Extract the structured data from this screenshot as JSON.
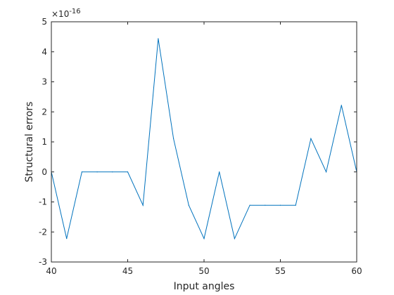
{
  "chart_data": {
    "type": "line",
    "title": "",
    "xlabel": "Input angles",
    "ylabel": "Structural errors",
    "xlim": [
      40,
      60
    ],
    "ylim": [
      -3,
      5
    ],
    "y_exponent_label": "×10",
    "y_exponent_power": "-16",
    "grid": false,
    "box": true,
    "line_color": "#0072BD",
    "axis_color": "#262626",
    "x_ticks": [
      40,
      45,
      50,
      55,
      60
    ],
    "x_tick_labels": [
      "40",
      "45",
      "50",
      "55",
      "60"
    ],
    "y_ticks": [
      -3,
      -2,
      -1,
      0,
      1,
      2,
      3,
      4,
      5
    ],
    "y_tick_labels": [
      "-3",
      "-2",
      "-1",
      "0",
      "1",
      "2",
      "3",
      "4",
      "5"
    ],
    "series": [
      {
        "x": [
          40,
          41,
          42,
          43,
          44,
          45,
          46,
          47,
          48,
          49,
          50,
          51,
          52,
          53,
          54,
          55,
          56,
          57,
          58,
          59,
          60
        ],
        "values": [
          0,
          -2.22,
          0,
          0,
          0,
          0,
          -1.11,
          4.44,
          1.11,
          -1.11,
          -2.22,
          0,
          -2.22,
          -1.11,
          -1.11,
          -1.11,
          -1.11,
          1.11,
          0,
          2.22,
          0
        ]
      }
    ]
  }
}
